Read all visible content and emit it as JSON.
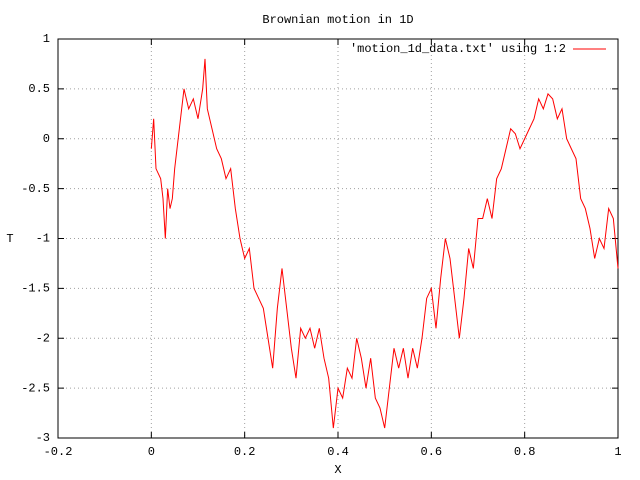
{
  "chart_data": {
    "type": "line",
    "title": "Brownian motion in 1D",
    "x_label": "X",
    "y_label": "T",
    "x": [
      0,
      0.005,
      0.01,
      0.02,
      0.025,
      0.03,
      0.035,
      0.04,
      0.045,
      0.05,
      0.06,
      0.07,
      0.08,
      0.09,
      0.1,
      0.11,
      0.115,
      0.12,
      0.13,
      0.14,
      0.15,
      0.16,
      0.17,
      0.18,
      0.19,
      0.2,
      0.21,
      0.22,
      0.23,
      0.24,
      0.25,
      0.26,
      0.27,
      0.28,
      0.29,
      0.3,
      0.31,
      0.32,
      0.33,
      0.34,
      0.35,
      0.36,
      0.37,
      0.38,
      0.39,
      0.4,
      0.41,
      0.42,
      0.43,
      0.44,
      0.45,
      0.46,
      0.47,
      0.48,
      0.49,
      0.5,
      0.51,
      0.52,
      0.53,
      0.54,
      0.55,
      0.56,
      0.57,
      0.58,
      0.59,
      0.6,
      0.61,
      0.62,
      0.63,
      0.64,
      0.65,
      0.66,
      0.67,
      0.68,
      0.69,
      0.7,
      0.71,
      0.72,
      0.73,
      0.74,
      0.75,
      0.76,
      0.77,
      0.78,
      0.79,
      0.8,
      0.81,
      0.82,
      0.83,
      0.84,
      0.85,
      0.86,
      0.87,
      0.88,
      0.89,
      0.9,
      0.91,
      0.92,
      0.93,
      0.94,
      0.95,
      0.96,
      0.97,
      0.98,
      0.99,
      1.0
    ],
    "series": [
      {
        "name": "'motion_1d_data.txt' using 1:2",
        "color": "#ff0000",
        "values": [
          -0.1,
          0.2,
          -0.3,
          -0.4,
          -0.6,
          -1.0,
          -0.5,
          -0.7,
          -0.6,
          -0.3,
          0.1,
          0.5,
          0.3,
          0.4,
          0.2,
          0.5,
          0.8,
          0.3,
          0.1,
          -0.1,
          -0.2,
          -0.4,
          -0.3,
          -0.7,
          -1.0,
          -1.2,
          -1.1,
          -1.5,
          -1.6,
          -1.7,
          -2.0,
          -2.3,
          -1.7,
          -1.3,
          -1.7,
          -2.1,
          -2.4,
          -1.9,
          -2.0,
          -1.9,
          -2.1,
          -1.9,
          -2.2,
          -2.4,
          -2.9,
          -2.5,
          -2.6,
          -2.3,
          -2.4,
          -2.0,
          -2.2,
          -2.5,
          -2.2,
          -2.6,
          -2.7,
          -2.9,
          -2.5,
          -2.1,
          -2.3,
          -2.1,
          -2.4,
          -2.1,
          -2.3,
          -2.0,
          -1.6,
          -1.5,
          -1.9,
          -1.4,
          -1.0,
          -1.2,
          -1.6,
          -2.0,
          -1.6,
          -1.1,
          -1.3,
          -0.8,
          -0.8,
          -0.6,
          -0.8,
          -0.4,
          -0.3,
          -0.1,
          0.1,
          0.05,
          -0.1,
          0.0,
          0.1,
          0.2,
          0.4,
          0.3,
          0.45,
          0.4,
          0.2,
          0.3,
          0.0,
          -0.1,
          -0.2,
          -0.6,
          -0.7,
          -0.9,
          -1.2,
          -1.0,
          -1.1,
          -0.7,
          -0.8,
          -1.3
        ]
      }
    ],
    "xlim": [
      -0.2,
      1
    ],
    "xticks": [
      -0.2,
      0,
      0.2,
      0.4,
      0.6,
      0.8,
      1
    ],
    "ylim": [
      -3,
      1
    ],
    "yticks": [
      1,
      0.5,
      0,
      -0.5,
      -1,
      -1.5,
      -2,
      -2.5,
      -3
    ],
    "grid": true,
    "legend": "top-right"
  }
}
